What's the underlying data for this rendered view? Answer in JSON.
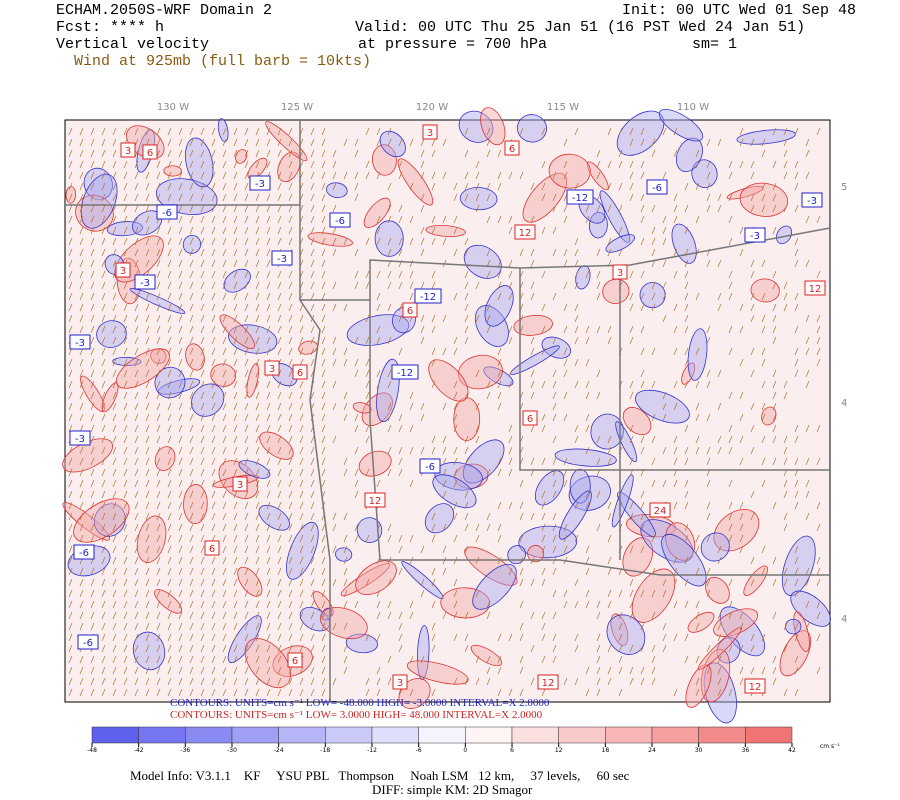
{
  "header": {
    "title": "ECHAM.2050S-WRF Domain 2",
    "init": "Init: 00 UTC Wed 01 Sep 48",
    "forecast": "Fcst: **** h",
    "valid": "Valid: 00 UTC Thu 25 Jan 51 (16 PST Wed 24 Jan 51)",
    "field": "Vertical velocity",
    "level": "at pressure =  700 hPa",
    "smoothing": "sm= 1",
    "wind": "Wind at 925mb (full barb = 10kts)"
  },
  "map": {
    "lon_labels": [
      "130 W",
      "125 W",
      "120 W",
      "115 W",
      "110 W"
    ],
    "lat_labels": [
      "5",
      "4",
      "4"
    ],
    "contour_labels": [
      {
        "text": "3",
        "color": "#dd2222"
      },
      {
        "text": "6",
        "color": "#dd2222"
      },
      {
        "text": "3",
        "color": "#dd2222"
      },
      {
        "text": "6",
        "color": "#dd2222"
      },
      {
        "text": "12",
        "color": "#dd2222"
      },
      {
        "text": "3",
        "color": "#dd2222"
      },
      {
        "text": "6",
        "color": "#dd2222"
      },
      {
        "text": "3",
        "color": "#dd2222"
      },
      {
        "text": "6",
        "color": "#dd2222"
      },
      {
        "text": "12",
        "color": "#dd2222"
      },
      {
        "text": "3",
        "color": "#dd2222"
      },
      {
        "text": "6",
        "color": "#dd2222"
      },
      {
        "text": "12",
        "color": "#dd2222"
      },
      {
        "text": "24",
        "color": "#dd2222"
      },
      {
        "text": "12",
        "color": "#dd2222"
      },
      {
        "text": "6",
        "color": "#dd2222"
      },
      {
        "text": "3",
        "color": "#dd2222"
      },
      {
        "text": "12",
        "color": "#dd2222"
      },
      {
        "text": "3",
        "color": "#dd2222"
      },
      {
        "text": "6",
        "color": "#dd2222"
      },
      {
        "text": "-3",
        "color": "#2222cc"
      },
      {
        "text": "-6",
        "color": "#2222cc"
      },
      {
        "text": "-3",
        "color": "#2222cc"
      },
      {
        "text": "-3",
        "color": "#2222cc"
      },
      {
        "text": "-3",
        "color": "#2222cc"
      },
      {
        "text": "-6",
        "color": "#2222cc"
      },
      {
        "text": "-6",
        "color": "#2222cc"
      },
      {
        "text": "-12",
        "color": "#2222cc"
      },
      {
        "text": "-12",
        "color": "#2222cc"
      },
      {
        "text": "-6",
        "color": "#2222cc"
      },
      {
        "text": "-3",
        "color": "#2222cc"
      },
      {
        "text": "-6",
        "color": "#2222cc"
      },
      {
        "text": "-3",
        "color": "#2222cc"
      },
      {
        "text": "-12",
        "color": "#2222cc"
      },
      {
        "text": "-3",
        "color": "#2222cc"
      },
      {
        "text": "-6",
        "color": "#2222cc"
      }
    ]
  },
  "contours": {
    "negative": "CONTOURS:  UNITS=cm s⁻¹  LOW= -48.000   HIGH= -3.0000   INTERVAL=X 2.0000",
    "positive": "CONTOURS:  UNITS=cm s⁻¹  LOW=  3.0000   HIGH=  48.000   INTERVAL=X  2.0000"
  },
  "colorbar": {
    "ticks": [
      -48,
      -42,
      -36,
      -30,
      -24,
      -18,
      -12,
      -6,
      0,
      6,
      12,
      18,
      24,
      30,
      36,
      42
    ],
    "units": "cm s⁻¹",
    "low_color": "#5555ee",
    "mid_color": "#ffffff",
    "high_color": "#ee5555"
  },
  "footer": {
    "model_info": "Model Info: V3.1.1    KF     YSU PBL   Thompson     Noah LSM   12 km,     37 levels,     60 sec",
    "diff": "DIFF: simple KM: 2D Smagor"
  }
}
